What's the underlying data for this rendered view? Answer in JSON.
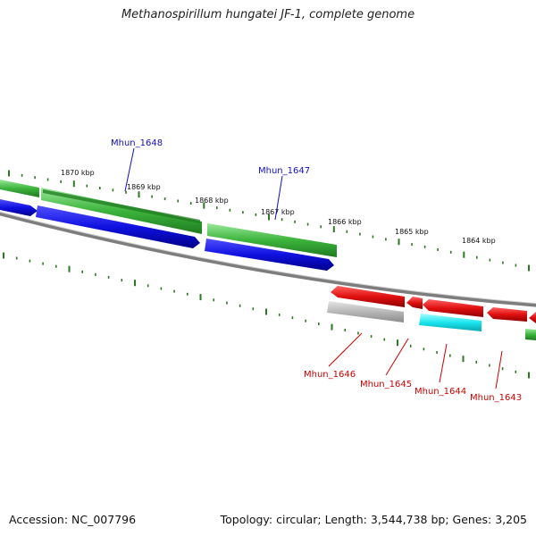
{
  "title": "Methanospirillum hungatei JF-1, complete genome",
  "footer": {
    "accession": "Accession: NC_007796",
    "summary": "Topology: circular; Length: 3,544,738 bp; Genes: 3,205"
  },
  "colors": {
    "forward_tick": "#2a7a1f",
    "backbone": "#8a8a8a",
    "cds_green": "#3cb43c",
    "cds_green_dark": "#2a8a2a",
    "cds_blue": "#1010e0",
    "cds_red": "#e01010",
    "cds_gray": "#b8b8b8",
    "cds_cyan": "#19e6ee",
    "label_blue": "#1010c0",
    "label_red": "#cc0000"
  },
  "ticks": [
    {
      "label": "1870 kbp"
    },
    {
      "label": "1869 kbp"
    },
    {
      "label": "1868 kbp"
    },
    {
      "label": "1867 kbp"
    },
    {
      "label": "1866 kbp"
    },
    {
      "label": "1865 kbp"
    },
    {
      "label": "1864 kbp"
    }
  ],
  "genes": [
    {
      "name": "Mhun_1648",
      "color": "label_blue"
    },
    {
      "name": "Mhun_1647",
      "color": "label_blue"
    },
    {
      "name": "Mhun_1646",
      "color": "label_red"
    },
    {
      "name": "Mhun_1645",
      "color": "label_red"
    },
    {
      "name": "Mhun_1644",
      "color": "label_red"
    },
    {
      "name": "Mhun_1643",
      "color": "label_red"
    }
  ]
}
